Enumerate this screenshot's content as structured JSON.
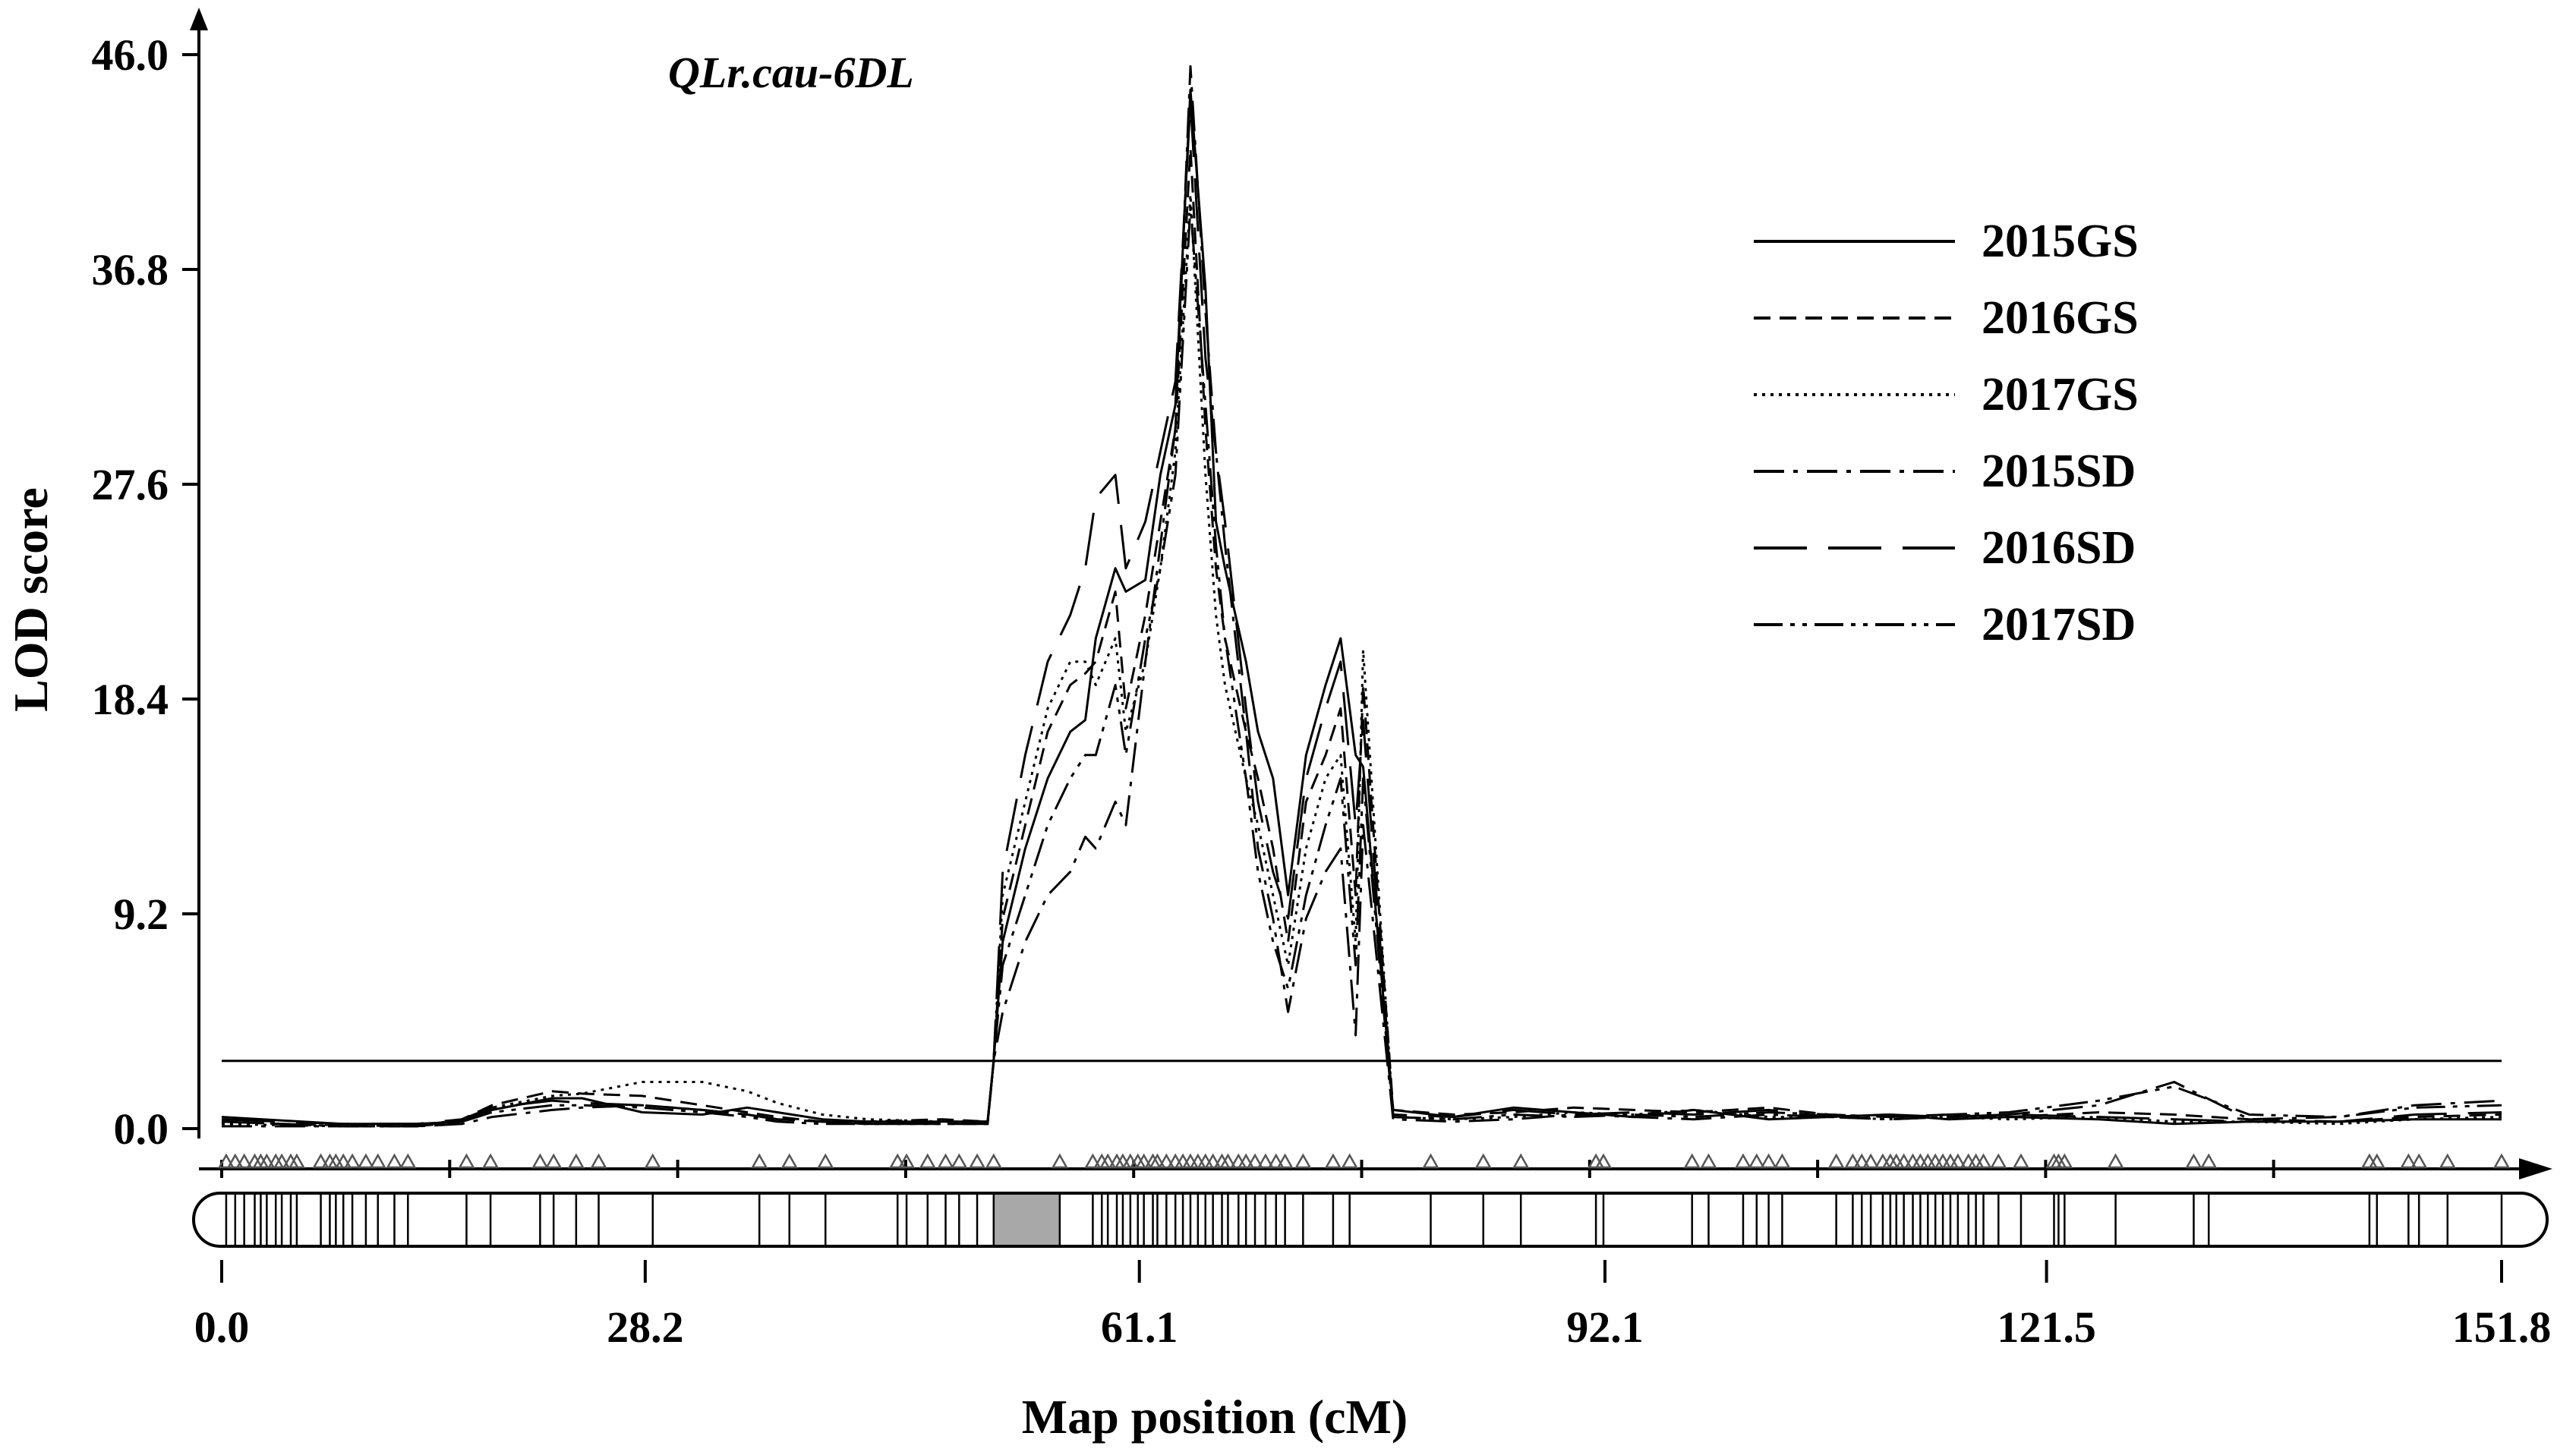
{
  "chart_data": {
    "type": "line",
    "title": "QLr.cau-6DL",
    "xlabel": "Map position (cM)",
    "ylabel": "LOD score",
    "xlim": [
      0,
      151.8
    ],
    "ylim": [
      0,
      46.0
    ],
    "x_ticks": [
      "0.0",
      "28.2",
      "61.1",
      "92.1",
      "121.5",
      "151.8"
    ],
    "x_tick_values": [
      0,
      28.2,
      61.1,
      92.1,
      121.5,
      151.8
    ],
    "y_ticks": [
      "0.0",
      "9.2",
      "18.4",
      "27.6",
      "36.8",
      "46.0"
    ],
    "y_tick_values": [
      0,
      9.2,
      18.4,
      27.6,
      36.8,
      46.0
    ],
    "threshold": 2.9,
    "legend_position": "top-right",
    "qtl_interval": [
      51.4,
      55.8
    ],
    "markers": [
      0.3,
      0.9,
      1.5,
      2.2,
      2.6,
      3.0,
      3.6,
      4.0,
      4.6,
      5.0,
      6.6,
      7.2,
      7.6,
      8.1,
      8.7,
      9.6,
      10.4,
      11.5,
      12.4,
      16.3,
      17.9,
      21.2,
      22.1,
      23.6,
      25.1,
      28.7,
      35.8,
      37.8,
      40.2,
      45.0,
      45.6,
      47.0,
      48.2,
      49.1,
      50.3,
      51.4,
      55.8,
      58.0,
      58.6,
      59.0,
      59.6,
      60.0,
      60.5,
      61.0,
      61.4,
      62.0,
      62.3,
      62.9,
      63.5,
      64.0,
      64.5,
      65.0,
      65.5,
      66.0,
      66.6,
      67.0,
      67.7,
      68.2,
      68.8,
      69.5,
      70.2,
      70.8,
      72.0,
      74.0,
      75.1,
      80.5,
      84.0,
      86.5,
      91.5,
      92.0,
      97.9,
      99.0,
      101.3,
      102.2,
      103.0,
      103.9,
      107.5,
      108.6,
      109.2,
      109.8,
      110.6,
      111.1,
      111.5,
      112.0,
      112.6,
      113.1,
      113.6,
      114.1,
      114.6,
      115.1,
      115.6,
      116.3,
      116.8,
      117.3,
      118.3,
      119.8,
      122.0,
      122.3,
      122.7,
      126.1,
      131.3,
      132.3,
      143.0,
      143.5,
      145.6,
      146.3,
      148.2,
      151.8
    ],
    "series": [
      {
        "name": "2015GS",
        "dash": "solid",
        "peak": 44.5,
        "tail": 16.0,
        "x": [
          0,
          4,
          8,
          13,
          16,
          18,
          22,
          24,
          28,
          32,
          35,
          37,
          40,
          43,
          48,
          51,
          51.4,
          52,
          53.5,
          55,
          56.5,
          57.5,
          58.2,
          59.5,
          60.2,
          61.5,
          62.5,
          63.5,
          64.5,
          65.5,
          66.2,
          66.8,
          67.5,
          68.2,
          69.0,
          70.0,
          71.0,
          72.2,
          73.5,
          74.5,
          75.5,
          76.0,
          78,
          82,
          86,
          90,
          94,
          98,
          103,
          107,
          111,
          115,
          119,
          125,
          130,
          135,
          141,
          146,
          151.8
        ],
        "y": [
          0.5,
          0.35,
          0.2,
          0.2,
          0.3,
          0.8,
          1.3,
          1.3,
          0.7,
          0.6,
          0.9,
          0.7,
          0.4,
          0.3,
          0.3,
          0.3,
          2.9,
          8,
          12,
          15,
          17,
          17.5,
          21,
          24,
          23,
          23.5,
          28,
          31,
          44.5,
          36,
          26,
          24,
          22,
          20,
          17,
          15,
          10,
          16,
          19,
          21,
          16,
          15.5,
          0.8,
          0.5,
          0.9,
          0.7,
          0.5,
          0.8,
          0.4,
          0.5,
          0.6,
          0.4,
          0.5,
          0.4,
          0.2,
          0.3,
          0.3,
          0.4,
          0.4
        ]
      },
      {
        "name": "2016GS",
        "dash": "dashed",
        "peak": 42.0,
        "tail": 19.0,
        "x": [
          0,
          4,
          8,
          13,
          16,
          18,
          22,
          24,
          28,
          32,
          35,
          37,
          40,
          43,
          48,
          51,
          51.4,
          52,
          53.5,
          55,
          56.5,
          57.5,
          58.2,
          59.5,
          60.2,
          61.5,
          62.5,
          63.5,
          64.5,
          65.5,
          66.2,
          66.8,
          67.5,
          68.2,
          69.0,
          70.0,
          71.0,
          72.2,
          73.5,
          74.5,
          75.5,
          76.0,
          78,
          82,
          86,
          90,
          94,
          98,
          103,
          107,
          111,
          115,
          119,
          125,
          130,
          135,
          141,
          146,
          151.8
        ],
        "y": [
          0.3,
          0.2,
          0.15,
          0.1,
          0.4,
          1.0,
          1.6,
          1.5,
          1.4,
          1.0,
          0.7,
          0.5,
          0.3,
          0.3,
          0.4,
          0.3,
          2.9,
          9,
          13,
          17,
          19,
          19.5,
          20,
          23,
          18,
          22,
          26,
          30,
          42,
          30,
          24,
          21,
          19,
          17,
          15,
          12,
          8,
          14,
          16,
          18,
          10,
          19,
          0.8,
          0.6,
          0.7,
          0.9,
          0.8,
          0.7,
          0.9,
          0.6,
          0.5,
          0.6,
          0.5,
          0.7,
          0.6,
          0.4,
          0.3,
          0.5,
          0.6
        ]
      },
      {
        "name": "2017GS",
        "dash": "dotted",
        "peak": 40.0,
        "tail": 20.5,
        "x": [
          0,
          4,
          8,
          13,
          16,
          18,
          22,
          24,
          28,
          32,
          35,
          37,
          40,
          43,
          48,
          51,
          51.4,
          52,
          53.5,
          55,
          56.5,
          57.5,
          58.2,
          59.5,
          60.2,
          61.5,
          62.5,
          63.5,
          64.5,
          65.5,
          66.2,
          66.8,
          67.5,
          68.2,
          69.0,
          70.0,
          71.0,
          72.2,
          73.5,
          74.5,
          75.5,
          76.0,
          78,
          82,
          86,
          90,
          94,
          98,
          103,
          107,
          111,
          115,
          119,
          125,
          130,
          135,
          141,
          146,
          151.8
        ],
        "y": [
          0.2,
          0.15,
          0.1,
          0.1,
          0.3,
          0.9,
          1.4,
          1.5,
          2.0,
          2.0,
          1.6,
          1.1,
          0.6,
          0.4,
          0.3,
          0.3,
          2.9,
          10,
          14,
          18,
          20,
          20,
          19,
          21,
          17,
          20,
          24,
          29,
          40,
          28,
          22,
          19,
          17,
          15,
          13,
          10,
          7,
          12,
          15,
          16,
          8,
          20.5,
          0.5,
          0.4,
          0.5,
          0.7,
          0.6,
          0.8,
          0.5,
          0.5,
          0.4,
          0.5,
          0.4,
          0.5,
          0.3,
          0.3,
          0.2,
          0.4,
          0.5
        ]
      },
      {
        "name": "2015SD",
        "dash": "dashdot",
        "peak": 45.5,
        "tail": 13.0,
        "x": [
          0,
          4,
          8,
          13,
          16,
          18,
          22,
          24,
          28,
          32,
          35,
          37,
          40,
          43,
          48,
          51,
          51.4,
          52,
          53.5,
          55,
          56.5,
          57.5,
          58.2,
          59.5,
          60.2,
          61.5,
          62.5,
          63.5,
          64.5,
          65.5,
          66.2,
          66.8,
          67.5,
          68.2,
          69.0,
          70.0,
          71.0,
          72.2,
          73.5,
          74.5,
          75.5,
          76.0,
          78,
          82,
          86,
          90,
          94,
          98,
          103,
          107,
          111,
          115,
          119,
          125,
          130,
          135,
          141,
          146,
          151.8
        ],
        "y": [
          0.1,
          0.1,
          0.1,
          0.1,
          0.2,
          0.5,
          0.8,
          0.9,
          1.0,
          0.8,
          0.6,
          0.4,
          0.3,
          0.2,
          0.2,
          0.2,
          2.9,
          5,
          8,
          10,
          11,
          12.5,
          12,
          14,
          13,
          20,
          25,
          30,
          45.5,
          35,
          29,
          25,
          21,
          17,
          12,
          9,
          5,
          9,
          11,
          12,
          4,
          13,
          0.4,
          0.3,
          0.4,
          0.6,
          0.5,
          0.4,
          0.6,
          0.5,
          0.4,
          0.5,
          0.6,
          1.0,
          2.0,
          0.4,
          0.5,
          1.0,
          1.2
        ]
      },
      {
        "name": "2016SD",
        "dash": "longdash",
        "peak": 44.0,
        "tail": 17.5,
        "x": [
          0,
          4,
          8,
          13,
          16,
          18,
          22,
          24,
          28,
          32,
          35,
          37,
          40,
          43,
          48,
          51,
          51.4,
          52,
          53.5,
          55,
          56.5,
          57.5,
          58.2,
          59.5,
          60.2,
          61.5,
          62.5,
          63.5,
          64.5,
          65.5,
          66.2,
          66.8,
          67.5,
          68.2,
          69.0,
          70.0,
          71.0,
          72.2,
          73.5,
          74.5,
          75.5,
          76.0,
          78,
          82,
          86,
          90,
          94,
          98,
          103,
          107,
          111,
          115,
          119,
          125,
          130,
          135,
          141,
          146,
          151.8
        ],
        "y": [
          0.4,
          0.3,
          0.2,
          0.2,
          0.4,
          0.9,
          1.2,
          1.1,
          1.0,
          0.8,
          0.6,
          0.4,
          0.3,
          0.2,
          0.3,
          0.3,
          2.9,
          11,
          16,
          20,
          22,
          24,
          27,
          28,
          24,
          26,
          29,
          32,
          44,
          33,
          29,
          26,
          22,
          18,
          14,
          11,
          9,
          15,
          18,
          20,
          13,
          17.5,
          0.6,
          0.5,
          0.8,
          0.6,
          0.7,
          0.6,
          0.8,
          0.5,
          0.6,
          0.5,
          0.6,
          0.5,
          0.4,
          0.3,
          0.3,
          0.6,
          0.7
        ]
      },
      {
        "name": "2017SD",
        "dash": "dashdotdot",
        "peak": 39.5,
        "tail": 15.0,
        "x": [
          0,
          4,
          8,
          13,
          16,
          18,
          22,
          24,
          28,
          32,
          35,
          37,
          40,
          43,
          48,
          51,
          51.4,
          52,
          53.5,
          55,
          56.5,
          57.5,
          58.2,
          59.5,
          60.2,
          61.5,
          62.5,
          63.5,
          64.5,
          65.5,
          66.2,
          66.8,
          67.5,
          68.2,
          69.0,
          70.0,
          71.0,
          72.2,
          73.5,
          74.5,
          75.5,
          76.0,
          78,
          82,
          86,
          90,
          94,
          98,
          103,
          107,
          111,
          115,
          119,
          125,
          130,
          135,
          141,
          146,
          151.8
        ],
        "y": [
          0.3,
          0.2,
          0.1,
          0.1,
          0.3,
          0.7,
          1.0,
          1.0,
          0.9,
          0.7,
          0.5,
          0.3,
          0.2,
          0.2,
          0.2,
          0.2,
          2.9,
          7,
          10,
          13,
          15,
          16,
          16,
          19,
          16,
          21,
          24,
          28,
          39.5,
          31,
          25,
          21,
          18,
          15,
          11,
          8,
          6,
          10,
          13,
          15,
          7,
          15,
          0.5,
          0.4,
          0.6,
          0.5,
          0.6,
          0.5,
          0.7,
          0.6,
          0.5,
          0.6,
          0.7,
          1.2,
          1.8,
          0.6,
          0.5,
          0.9,
          1.0
        ]
      }
    ]
  }
}
